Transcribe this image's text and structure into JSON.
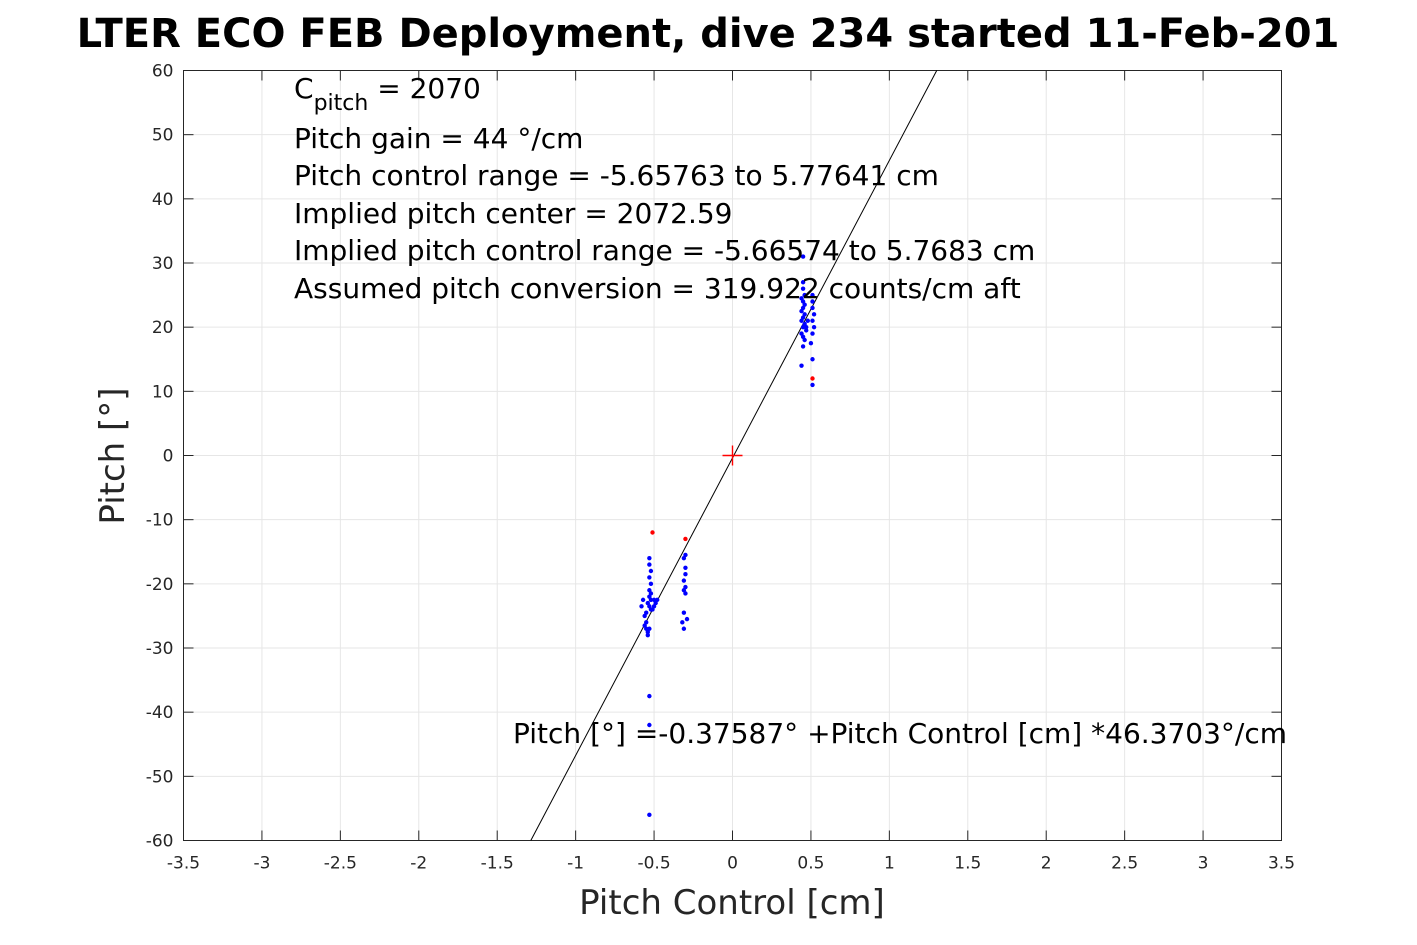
{
  "chart_data": {
    "type": "scatter",
    "title": "LTER ECO FEB Deployment, dive 234 started 11-Feb-201",
    "xlabel": "Pitch Control [cm]",
    "ylabel": "Pitch [°]",
    "xlim": [
      -3.5,
      3.5
    ],
    "ylim": [
      -60,
      60
    ],
    "grid": true,
    "x_ticks": [
      -3.5,
      -3,
      -2.5,
      -2,
      -1.5,
      -1,
      -0.5,
      0,
      0.5,
      1,
      1.5,
      2,
      2.5,
      3,
      3.5
    ],
    "x_tick_labels": [
      "-3.5",
      "-3",
      "-2.5",
      "-2",
      "-1.5",
      "-1",
      "-0.5",
      "0",
      "0.5",
      "1",
      "1.5",
      "2",
      "2.5",
      "3",
      "3.5"
    ],
    "y_ticks": [
      60,
      50,
      40,
      30,
      20,
      10,
      0,
      -10,
      -20,
      -30,
      -40,
      -50,
      -60
    ],
    "y_tick_labels": [
      "60",
      "50",
      "40",
      "30",
      "20",
      "10",
      "0",
      "-10",
      "-20",
      "-30",
      "-40",
      "-50",
      "-60"
    ],
    "annotations": {
      "cpitch_base": "C",
      "cpitch_sub": "pitch",
      "cpitch_value": " = 2070",
      "pitch_gain": "Pitch gain = 44 °/cm",
      "control_range": "Pitch control range = -5.65763 to 5.77641 cm",
      "implied_center": "Implied pitch center = 2072.59",
      "implied_range": "Implied pitch control range = -5.66574 to 5.7683 cm",
      "conversion": "Assumed pitch conversion = 319.922 counts/cm aft",
      "fit_equation": "Pitch [°] =-0.37587° +Pitch Control [cm] *46.3703°/cm"
    },
    "fit_line": {
      "intercept": -0.37587,
      "slope": 46.3703,
      "color": "#000000"
    },
    "center_marker": {
      "x": 0,
      "y": 0,
      "color": "#ff0000"
    },
    "series": [
      {
        "color": "#0000ff",
        "points": [
          [
            0.45,
            31
          ],
          [
            0.45,
            27
          ],
          [
            0.45,
            26
          ],
          [
            0.46,
            25
          ],
          [
            0.44,
            24.5
          ],
          [
            0.45,
            24
          ],
          [
            0.46,
            23.5
          ],
          [
            0.45,
            23
          ],
          [
            0.44,
            22.5
          ],
          [
            0.46,
            22
          ],
          [
            0.45,
            21.5
          ],
          [
            0.44,
            21
          ],
          [
            0.46,
            20.5
          ],
          [
            0.45,
            20
          ],
          [
            0.47,
            19.5
          ],
          [
            0.44,
            19
          ],
          [
            0.45,
            18.5
          ],
          [
            0.46,
            18
          ],
          [
            0.45,
            17
          ],
          [
            0.44,
            14
          ],
          [
            0.47,
            20
          ],
          [
            0.48,
            21
          ],
          [
            0.51,
            25
          ],
          [
            0.51,
            24
          ],
          [
            0.51,
            23
          ],
          [
            0.52,
            22
          ],
          [
            0.51,
            21
          ],
          [
            0.52,
            20
          ],
          [
            0.51,
            19
          ],
          [
            0.5,
            17.5
          ],
          [
            0.51,
            15
          ],
          [
            0.51,
            11
          ],
          [
            -0.53,
            -16
          ],
          [
            -0.53,
            -17
          ],
          [
            -0.52,
            -18
          ],
          [
            -0.53,
            -19
          ],
          [
            -0.52,
            -20
          ],
          [
            -0.53,
            -21
          ],
          [
            -0.52,
            -21.5
          ],
          [
            -0.53,
            -22
          ],
          [
            -0.52,
            -22.5
          ],
          [
            -0.54,
            -23
          ],
          [
            -0.53,
            -23.5
          ],
          [
            -0.52,
            -24
          ],
          [
            -0.5,
            -22.5
          ],
          [
            -0.49,
            -23
          ],
          [
            -0.5,
            -23.5
          ],
          [
            -0.51,
            -24
          ],
          [
            -0.48,
            -22.5
          ],
          [
            -0.57,
            -22.5
          ],
          [
            -0.58,
            -23.5
          ],
          [
            -0.55,
            -24.5
          ],
          [
            -0.56,
            -25
          ],
          [
            -0.55,
            -26
          ],
          [
            -0.56,
            -26.5
          ],
          [
            -0.55,
            -27
          ],
          [
            -0.54,
            -27.5
          ],
          [
            -0.54,
            -28
          ],
          [
            -0.53,
            -27
          ],
          [
            -0.3,
            -15.5
          ],
          [
            -0.31,
            -16
          ],
          [
            -0.3,
            -17.5
          ],
          [
            -0.3,
            -18.5
          ],
          [
            -0.31,
            -19.5
          ],
          [
            -0.3,
            -20.5
          ],
          [
            -0.31,
            -21
          ],
          [
            -0.3,
            -21.5
          ],
          [
            -0.31,
            -24.5
          ],
          [
            -0.29,
            -25.5
          ],
          [
            -0.32,
            -26
          ],
          [
            -0.31,
            -27
          ],
          [
            -0.53,
            -37.5
          ],
          [
            -0.53,
            -42
          ],
          [
            -0.53,
            -56
          ]
        ]
      },
      {
        "color": "#ff0000",
        "points": [
          [
            -0.51,
            -12
          ],
          [
            -0.3,
            -13
          ],
          [
            0.51,
            12
          ]
        ]
      }
    ]
  }
}
